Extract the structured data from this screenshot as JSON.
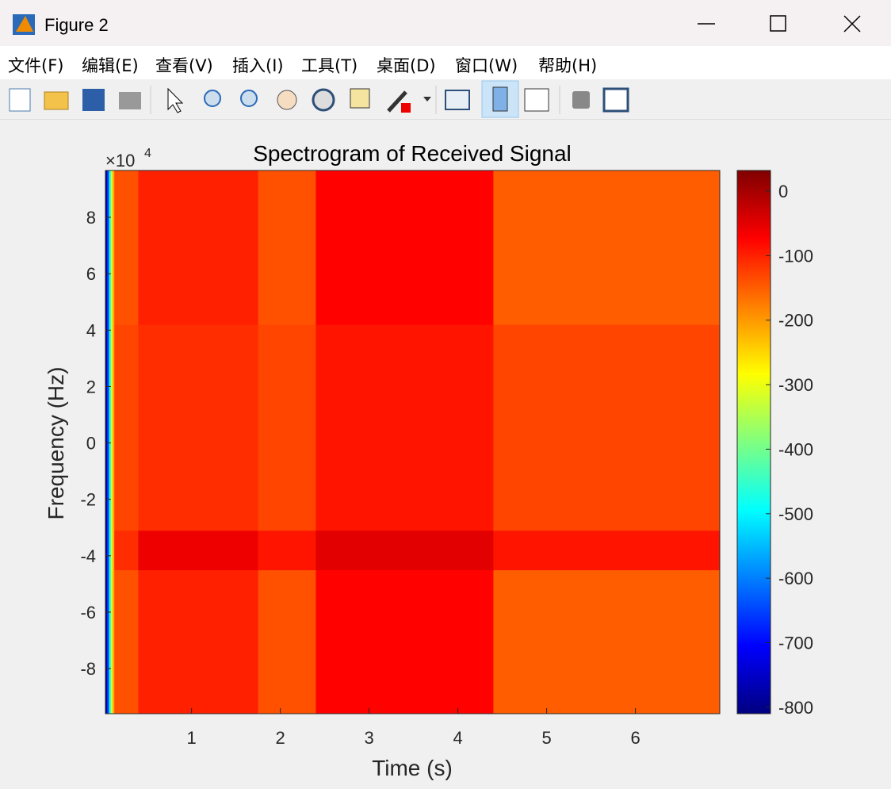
{
  "window": {
    "title": "Figure 2",
    "menus": [
      "文件(F)",
      "编辑(E)",
      "查看(V)",
      "插入(I)",
      "工具(T)",
      "桌面(D)",
      "窗口(W)",
      "帮助(H)"
    ]
  },
  "chart_data": {
    "type": "heatmap",
    "title": "Spectrogram of Received Signal",
    "xlabel": "Time (s)",
    "ylabel": "Frequency (Hz)",
    "y_exponent": {
      "base": "×10",
      "power": "4"
    },
    "xbins": [
      0.03,
      0.05,
      0.07,
      0.09,
      0.11,
      0.13,
      0.4,
      1.75,
      2.4,
      4.4,
      6.95
    ],
    "ybins": [
      -9.6,
      -4.5,
      -3.1,
      4.2,
      9.66
    ],
    "values": [
      [
        -780,
        -650,
        -480,
        -320,
        -220,
        -140,
        -100,
        -140,
        -75,
        -150
      ],
      [
        -780,
        -650,
        -480,
        -320,
        -220,
        -110,
        -60,
        -90,
        -50,
        -90
      ],
      [
        -780,
        -650,
        -480,
        -320,
        -220,
        -130,
        -110,
        -130,
        -90,
        -130
      ],
      [
        -780,
        -650,
        -480,
        -320,
        -220,
        -140,
        -100,
        -140,
        -75,
        -150
      ]
    ],
    "colormap": "jet",
    "xlim": [
      0.03,
      6.95
    ],
    "ylim": [
      -9.6,
      9.66
    ],
    "xticks": [
      1,
      2,
      3,
      4,
      5,
      6
    ],
    "yticks": [
      -8,
      -6,
      -4,
      -2,
      0,
      2,
      4,
      6,
      8
    ],
    "clim": [
      -810,
      32
    ],
    "cticks": [
      -800,
      -700,
      -600,
      -500,
      -400,
      -300,
      -200,
      -100,
      0
    ]
  }
}
